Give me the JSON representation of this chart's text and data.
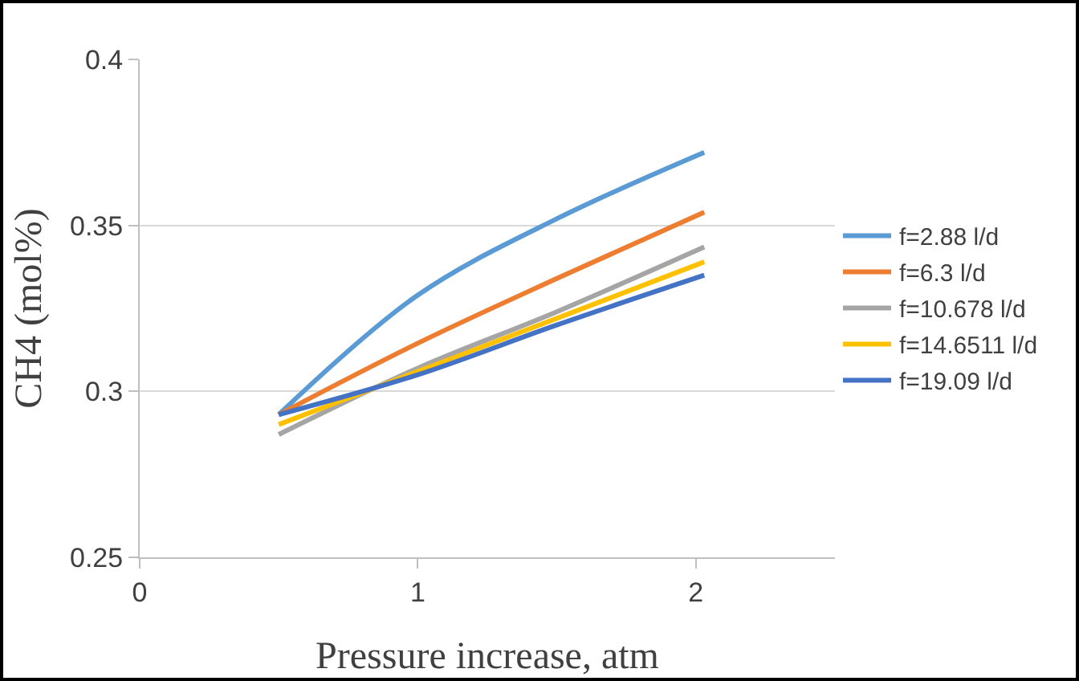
{
  "chart_data": {
    "type": "line",
    "xlabel": "Pressure increase, atm",
    "ylabel": "CH4 (mol%)",
    "x": [
      0.5,
      1,
      1.5,
      2.03
    ],
    "series": [
      {
        "name": "f=2.88 l/d",
        "color": "#5b9bd5",
        "values": [
          0.293,
          0.329,
          0.352,
          0.372
        ]
      },
      {
        "name": "f=6.3 l/d",
        "color": "#ed7d31",
        "values": [
          0.293,
          0.3145,
          0.334,
          0.354
        ]
      },
      {
        "name": "f=10.678 l/d",
        "color": "#a5a5a5",
        "values": [
          0.287,
          0.307,
          0.324,
          0.3435
        ]
      },
      {
        "name": "f=14.6511 l/d",
        "color": "#ffc000",
        "values": [
          0.29,
          0.306,
          0.322,
          0.339
        ]
      },
      {
        "name": "f=19.09 l/d",
        "color": "#4472c4",
        "values": [
          0.293,
          0.305,
          0.32,
          0.335
        ]
      }
    ],
    "xlim": [
      0,
      2.5
    ],
    "xticks": [
      0,
      1,
      2
    ],
    "ylim": [
      0.25,
      0.4
    ],
    "yticks": [
      0.25,
      0.3,
      0.35,
      0.4
    ],
    "grid": "y",
    "legend": "right",
    "marker": "none",
    "line_style": "solid"
  }
}
